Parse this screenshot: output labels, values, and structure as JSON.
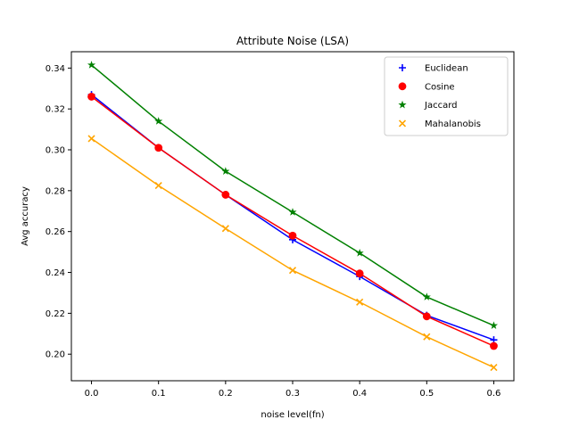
{
  "chart_data": {
    "type": "line",
    "title": "Attribute Noise (LSA)",
    "xlabel": "noise level(fn)",
    "ylabel": "Avg accuracy",
    "x": [
      0.0,
      0.1,
      0.2,
      0.3,
      0.4,
      0.5,
      0.6
    ],
    "xticks": [
      "0.0",
      "0.1",
      "0.2",
      "0.3",
      "0.4",
      "0.5",
      "0.6"
    ],
    "yticks": [
      "0.20",
      "0.22",
      "0.24",
      "0.26",
      "0.28",
      "0.30",
      "0.32",
      "0.34"
    ],
    "xlim": [
      -0.03,
      0.63
    ],
    "ylim": [
      0.187,
      0.348
    ],
    "legend_position": "top-right",
    "grid": false,
    "series": [
      {
        "name": "Euclidean",
        "color": "#0000ff",
        "marker": "plus",
        "values": [
          0.327,
          0.301,
          0.278,
          0.256,
          0.238,
          0.219,
          0.207
        ]
      },
      {
        "name": "Cosine",
        "color": "#ff0000",
        "marker": "circle",
        "values": [
          0.326,
          0.301,
          0.278,
          0.258,
          0.2395,
          0.2185,
          0.204
        ]
      },
      {
        "name": "Jaccard",
        "color": "#008000",
        "marker": "star",
        "values": [
          0.3415,
          0.314,
          0.2895,
          0.2695,
          0.2495,
          0.228,
          0.214
        ]
      },
      {
        "name": "Mahalanobis",
        "color": "#ffa500",
        "marker": "x",
        "values": [
          0.3055,
          0.2825,
          0.2615,
          0.241,
          0.2255,
          0.2085,
          0.1935
        ]
      }
    ]
  }
}
